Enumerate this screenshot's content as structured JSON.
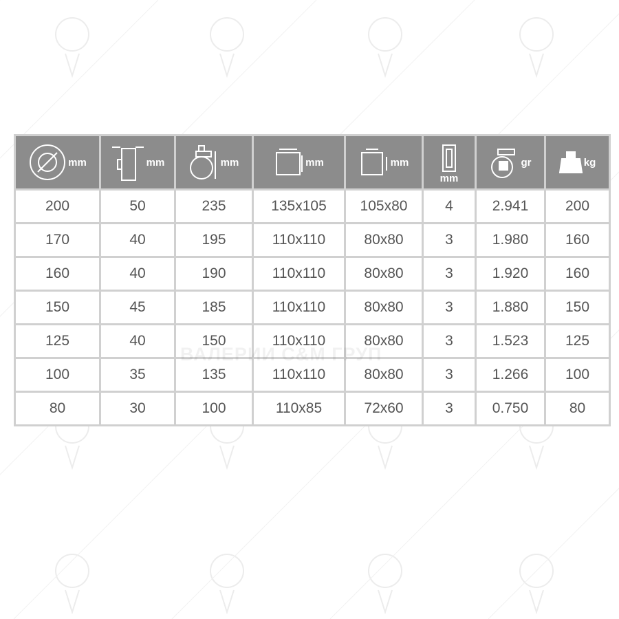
{
  "watermark": {
    "text": "ВАЛЕРИИ С&М ГРУП"
  },
  "headers": [
    {
      "icon": "wheel-diameter-icon",
      "unit": "mm"
    },
    {
      "icon": "wheel-width-icon",
      "unit": "mm"
    },
    {
      "icon": "total-height-icon",
      "unit": "mm"
    },
    {
      "icon": "plate-size-icon",
      "unit": "mm"
    },
    {
      "icon": "bolt-hole-spacing-icon",
      "unit": "mm"
    },
    {
      "icon": "plate-thickness-icon",
      "unit": "mm"
    },
    {
      "icon": "caster-weight-icon",
      "unit": "gr"
    },
    {
      "icon": "load-capacity-weight-icon",
      "unit": "kg"
    }
  ],
  "rows": [
    [
      "200",
      "50",
      "235",
      "135x105",
      "105x80",
      "4",
      "2.941",
      "200"
    ],
    [
      "170",
      "40",
      "195",
      "110x110",
      "80x80",
      "3",
      "1.980",
      "160"
    ],
    [
      "160",
      "40",
      "190",
      "110x110",
      "80x80",
      "3",
      "1.920",
      "160"
    ],
    [
      "150",
      "45",
      "185",
      "110x110",
      "80x80",
      "3",
      "1.880",
      "150"
    ],
    [
      "125",
      "40",
      "150",
      "110x110",
      "80x80",
      "3",
      "1.523",
      "125"
    ],
    [
      "100",
      "35",
      "135",
      "110x110",
      "80x80",
      "3",
      "1.266",
      "100"
    ],
    [
      "80",
      "30",
      "100",
      "110x85",
      "72x60",
      "3",
      "0.750",
      "80"
    ]
  ],
  "colors": {
    "header_bg": "#8c8c8c",
    "border": "#d0d0d0",
    "text": "#555555"
  }
}
